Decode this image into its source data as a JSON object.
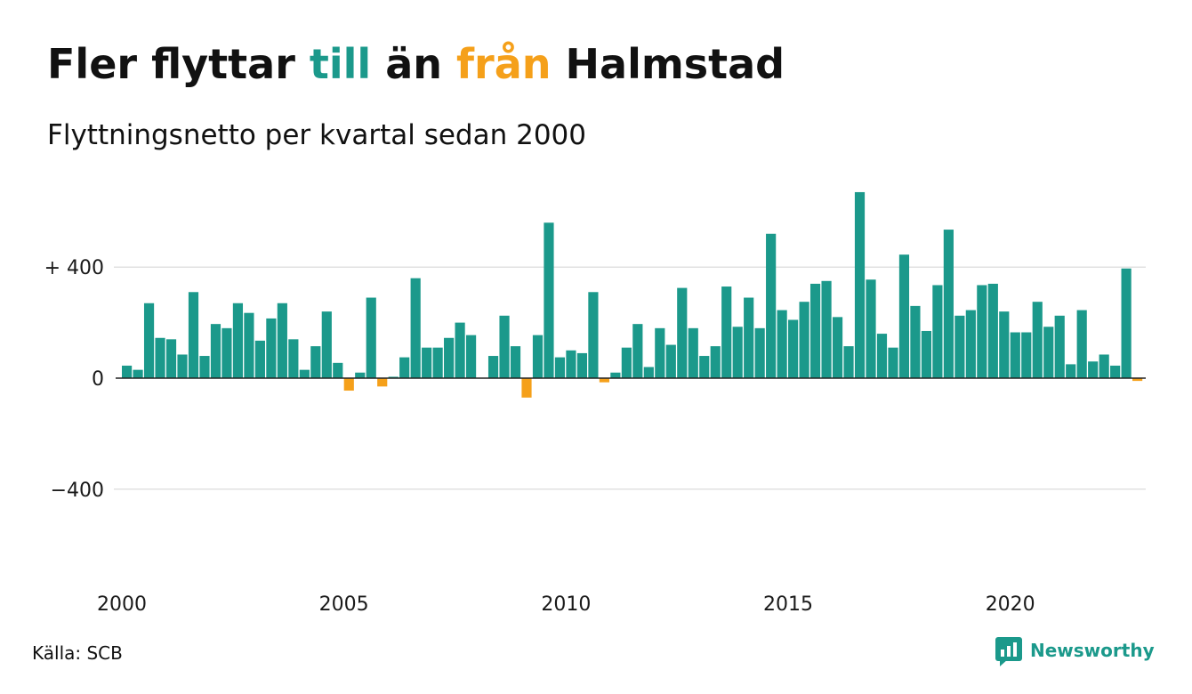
{
  "chart_data": {
    "type": "bar",
    "title": [
      {
        "text": "Fler flyttar",
        "color": "#111111"
      },
      {
        "text": "till",
        "color": "#1b998b"
      },
      {
        "text": "än",
        "color": "#111111"
      },
      {
        "text": "från",
        "color": "#f5a01a"
      },
      {
        "text": "Halmstad",
        "color": "#111111"
      }
    ],
    "subtitle": "Flyttningsnetto per kvartal sedan 2000",
    "x": [
      "2000-Q1",
      "2000-Q2",
      "2000-Q3",
      "2000-Q4",
      "2001-Q1",
      "2001-Q2",
      "2001-Q3",
      "2001-Q4",
      "2002-Q1",
      "2002-Q2",
      "2002-Q3",
      "2002-Q4",
      "2003-Q1",
      "2003-Q2",
      "2003-Q3",
      "2003-Q4",
      "2004-Q1",
      "2004-Q2",
      "2004-Q3",
      "2004-Q4",
      "2005-Q1",
      "2005-Q2",
      "2005-Q3",
      "2005-Q4",
      "2006-Q1",
      "2006-Q2",
      "2006-Q3",
      "2006-Q4",
      "2007-Q1",
      "2007-Q2",
      "2007-Q3",
      "2007-Q4",
      "2008-Q1",
      "2008-Q2",
      "2008-Q3",
      "2008-Q4",
      "2009-Q1",
      "2009-Q2",
      "2009-Q3",
      "2009-Q4",
      "2010-Q1",
      "2010-Q2",
      "2010-Q3",
      "2010-Q4",
      "2011-Q1",
      "2011-Q2",
      "2011-Q3",
      "2011-Q4",
      "2012-Q1",
      "2012-Q2",
      "2012-Q3",
      "2012-Q4",
      "2013-Q1",
      "2013-Q2",
      "2013-Q3",
      "2013-Q4",
      "2014-Q1",
      "2014-Q2",
      "2014-Q3",
      "2014-Q4",
      "2015-Q1",
      "2015-Q2",
      "2015-Q3",
      "2015-Q4",
      "2016-Q1",
      "2016-Q2",
      "2016-Q3",
      "2016-Q4",
      "2017-Q1",
      "2017-Q2",
      "2017-Q3",
      "2017-Q4",
      "2018-Q1",
      "2018-Q2",
      "2018-Q3",
      "2018-Q4",
      "2019-Q1",
      "2019-Q2",
      "2019-Q3",
      "2019-Q4",
      "2020-Q1",
      "2020-Q2",
      "2020-Q3",
      "2020-Q4",
      "2021-Q1",
      "2021-Q2",
      "2021-Q3",
      "2021-Q4",
      "2022-Q1",
      "2022-Q2",
      "2022-Q3",
      "2022-Q4"
    ],
    "values": [
      45,
      30,
      270,
      145,
      140,
      85,
      310,
      80,
      195,
      180,
      270,
      235,
      135,
      215,
      270,
      140,
      30,
      115,
      240,
      55,
      -45,
      20,
      290,
      -30,
      5,
      75,
      360,
      110,
      110,
      145,
      200,
      155,
      0,
      80,
      225,
      115,
      -70,
      155,
      560,
      75,
      100,
      90,
      310,
      -15,
      20,
      110,
      195,
      40,
      180,
      120,
      325,
      180,
      80,
      115,
      330,
      185,
      290,
      180,
      520,
      245,
      210,
      275,
      340,
      350,
      220,
      115,
      670,
      355,
      160,
      110,
      445,
      260,
      170,
      335,
      535,
      225,
      245,
      335,
      340,
      240,
      165,
      165,
      275,
      185,
      225,
      50,
      245,
      60,
      85,
      45,
      395,
      -10
    ],
    "x_ticks": [
      "2000",
      "2005",
      "2010",
      "2015",
      "2020"
    ],
    "y_ticks": [
      {
        "value": 400,
        "label": "+ 400"
      },
      {
        "value": 0,
        "label": "0"
      },
      {
        "value": -400,
        "label": "−400"
      }
    ],
    "ylim": [
      -750,
      750
    ],
    "grid": true,
    "colors": {
      "positive": "#1b998b",
      "negative": "#f5a01a",
      "grid": "#e1e1e1",
      "axis": "#222222"
    }
  },
  "source": "Källa: SCB",
  "brand": {
    "name": "Newsworthy",
    "icon": "newsworthy-logo-icon",
    "color": "#1b998b"
  }
}
